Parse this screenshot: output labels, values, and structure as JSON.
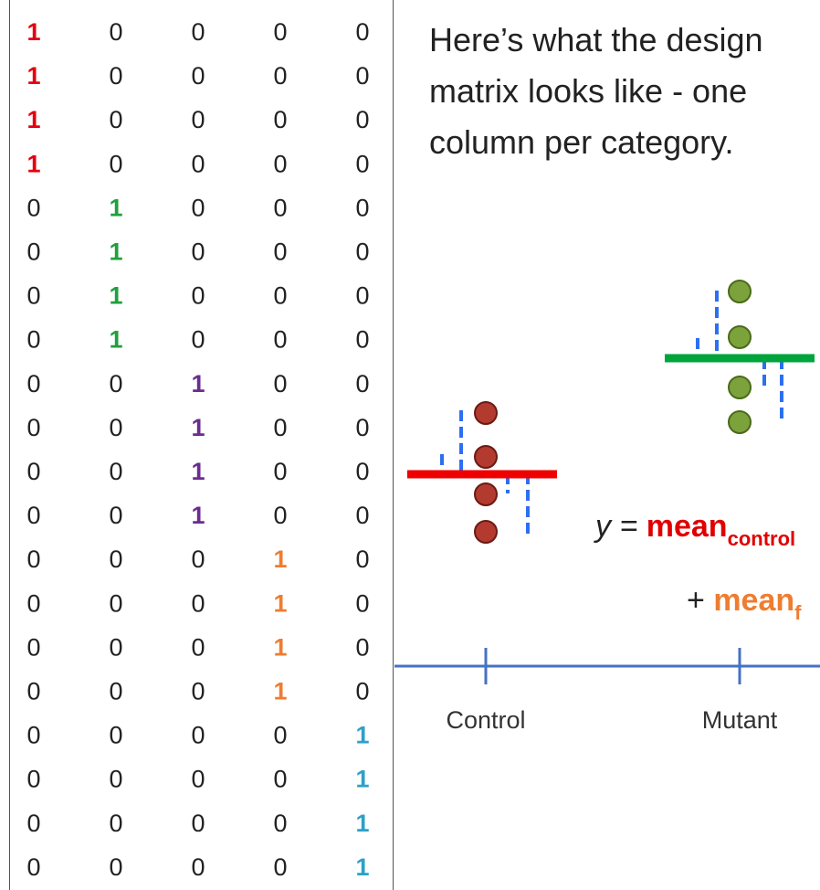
{
  "caption": "Here’s what the design matrix looks like - one column per category.",
  "design_matrix": {
    "rows": [
      [
        1,
        0,
        0,
        0,
        0
      ],
      [
        1,
        0,
        0,
        0,
        0
      ],
      [
        1,
        0,
        0,
        0,
        0
      ],
      [
        1,
        0,
        0,
        0,
        0
      ],
      [
        0,
        1,
        0,
        0,
        0
      ],
      [
        0,
        1,
        0,
        0,
        0
      ],
      [
        0,
        1,
        0,
        0,
        0
      ],
      [
        0,
        1,
        0,
        0,
        0
      ],
      [
        0,
        0,
        1,
        0,
        0
      ],
      [
        0,
        0,
        1,
        0,
        0
      ],
      [
        0,
        0,
        1,
        0,
        0
      ],
      [
        0,
        0,
        1,
        0,
        0
      ],
      [
        0,
        0,
        0,
        1,
        0
      ],
      [
        0,
        0,
        0,
        1,
        0
      ],
      [
        0,
        0,
        0,
        1,
        0
      ],
      [
        0,
        0,
        0,
        1,
        0
      ],
      [
        0,
        0,
        0,
        0,
        1
      ],
      [
        0,
        0,
        0,
        0,
        1
      ],
      [
        0,
        0,
        0,
        0,
        1
      ],
      [
        0,
        0,
        0,
        0,
        1
      ]
    ],
    "column_colors": [
      "#e3000f",
      "#1fa03c",
      "#6a2c91",
      "#ee7d31",
      "#2ea0c8"
    ],
    "zero_color": "#222222"
  },
  "plot": {
    "axis_labels": [
      "Control",
      "Mutant"
    ],
    "axis_color": "#4472c4",
    "control": {
      "mean_color": "#ee0000",
      "point_color": "#b33a2f"
    },
    "mutant": {
      "mean_color": "#00a43d",
      "point_color": "#7ca33b"
    },
    "residual_color": "#2d6ff2"
  },
  "equation": {
    "line1_prefix": "y = ",
    "line1_term": "mean",
    "line1_sub": "control",
    "line2_prefix": "+ ",
    "line2_term": "mean",
    "line2_sub": "f",
    "line1_color": "#e00000",
    "line2_color": "#ee7d31"
  }
}
